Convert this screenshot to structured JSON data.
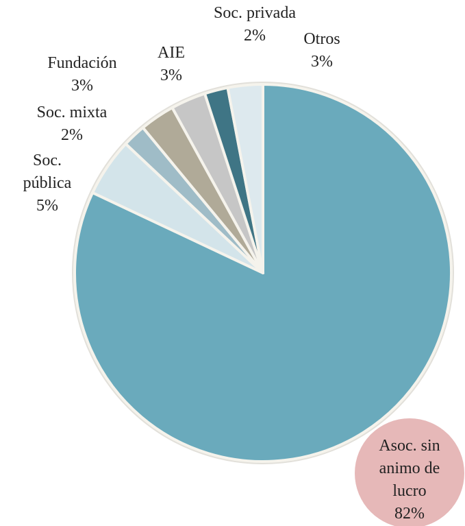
{
  "chart_data": {
    "type": "pie",
    "categories": [
      "Asoc. sin animo de lucro",
      "Soc. pública",
      "Soc. mixta",
      "Fundación",
      "AIE",
      "Soc. privada",
      "Otros"
    ],
    "values": [
      82,
      5,
      2,
      3,
      3,
      2,
      3
    ],
    "value_labels": [
      "82%",
      "5%",
      "2%",
      "3%",
      "3%",
      "2%",
      "3%"
    ],
    "colors": [
      "#6aaabc",
      "#d3e4ea",
      "#9fbcc7",
      "#b0aa98",
      "#c6c6c6",
      "#3f7585",
      "#dde9ee"
    ]
  }
}
